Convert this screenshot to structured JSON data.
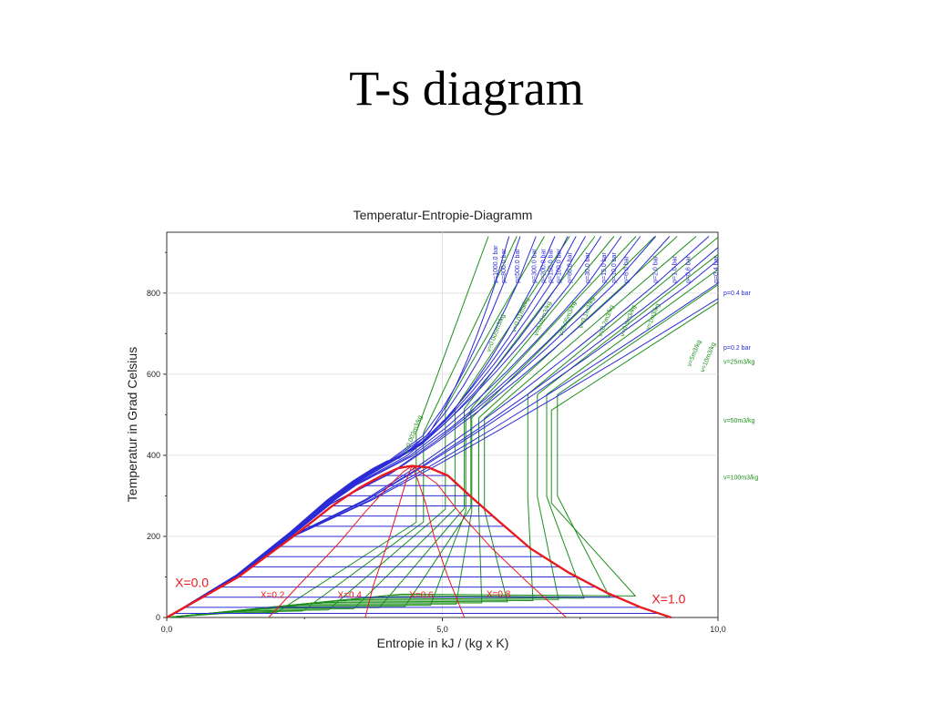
{
  "slide": {
    "title": "T-s diagram"
  },
  "chart_data": {
    "type": "line",
    "title": "Temperatur-Entropie-Diagramm",
    "xlabel": "Entropie in kJ / (kg x K)",
    "ylabel": "Temperatur in Grad Celsius",
    "xlim": [
      0,
      10
    ],
    "ylim": [
      0,
      950
    ],
    "x_ticks": [
      0,
      5,
      10
    ],
    "x_tick_labels": [
      "0,0",
      "5,0",
      "10,0"
    ],
    "y_ticks": [
      0,
      200,
      400,
      600,
      800
    ],
    "y_tick_labels": [
      "0",
      "200",
      "400",
      "600",
      "800"
    ],
    "grid": true,
    "colors": {
      "saturation": "#e8191f",
      "quality": "#e8191f",
      "isobar": "#2b2bd6",
      "isochore": "#1c8f1c",
      "grid": "#dddddd"
    },
    "saturation_dome": {
      "name": "saturation curve",
      "x": [
        0,
        1.3,
        2.3,
        3.0,
        3.5,
        3.9,
        4.2,
        4.45,
        4.75,
        5.1,
        5.5,
        6.0,
        6.6,
        7.3,
        8.0,
        8.6,
        9.15
      ],
      "y": [
        0,
        100,
        200,
        275,
        320,
        350,
        368,
        374,
        370,
        350,
        300,
        240,
        170,
        110,
        60,
        25,
        0
      ]
    },
    "quality_lines": [
      {
        "label": "X=0.0",
        "x": [
          0,
          1.3,
          2.3,
          3.0,
          3.5,
          3.9,
          4.2,
          4.45
        ],
        "y": [
          0,
          100,
          200,
          275,
          320,
          350,
          368,
          374
        ]
      },
      {
        "label": "X=0.2",
        "x": [
          1.85,
          2.4,
          3.1,
          3.6,
          4.0,
          4.3,
          4.45
        ],
        "y": [
          0,
          80,
          180,
          260,
          320,
          360,
          374
        ]
      },
      {
        "label": "X=0.4",
        "x": [
          3.6,
          3.75,
          4.0,
          4.2,
          4.35,
          4.45
        ],
        "y": [
          0,
          80,
          180,
          270,
          340,
          374
        ]
      },
      {
        "label": "X=0.6",
        "x": [
          5.4,
          5.1,
          4.85,
          4.7,
          4.55,
          4.45
        ],
        "y": [
          0,
          100,
          200,
          280,
          340,
          374
        ]
      },
      {
        "label": "X=0.8",
        "x": [
          7.25,
          6.6,
          5.9,
          5.3,
          4.9,
          4.45
        ],
        "y": [
          0,
          80,
          170,
          260,
          330,
          374
        ]
      },
      {
        "label": "X=1.0",
        "x": [
          9.15,
          8.6,
          8.0,
          7.3,
          6.6,
          6.0,
          5.5,
          5.1,
          4.75,
          4.45
        ],
        "y": [
          0,
          25,
          60,
          110,
          170,
          240,
          300,
          350,
          370,
          374
        ]
      }
    ],
    "quality_label_positions": [
      {
        "label": "X=0.0",
        "x": 0.15,
        "y": 75
      },
      {
        "label": "X=0.2",
        "x": 1.7,
        "y": 48
      },
      {
        "label": "X=0.4",
        "x": 3.1,
        "y": 48
      },
      {
        "label": "X=0.6",
        "x": 4.4,
        "y": 48
      },
      {
        "label": "X=0.8",
        "x": 5.8,
        "y": 50
      },
      {
        "label": "X=1.0",
        "x": 8.8,
        "y": 35
      }
    ],
    "isobars": [
      {
        "label": "p=1000.0 bar",
        "top_x": 5.95
      },
      {
        "label": "p=800.0 bar",
        "top_x": 6.1
      },
      {
        "label": "p=500.0 bar",
        "top_x": 6.35
      },
      {
        "label": "p=300.0 bar",
        "top_x": 6.65
      },
      {
        "label": "p=200.0 bar",
        "top_x": 6.82
      },
      {
        "label": "p=150.0 bar",
        "top_x": 6.95
      },
      {
        "label": "p=100.0 bar",
        "top_x": 7.1
      },
      {
        "label": "p=60.0 bar",
        "top_x": 7.3
      },
      {
        "label": "p=30.0 bar",
        "top_x": 7.62
      },
      {
        "label": "p=15.0 bar",
        "top_x": 7.92
      },
      {
        "label": "p=10.0 bar",
        "top_x": 8.1
      },
      {
        "label": "p=6.0 bar",
        "top_x": 8.32
      },
      {
        "label": "p=2.0 bar",
        "top_x": 8.85
      },
      {
        "label": "p=1.0 bar",
        "top_x": 9.2
      },
      {
        "label": "p=0.6 bar",
        "top_x": 9.45
      },
      {
        "label": "p=0.4 bar",
        "top_x": 9.95
      },
      {
        "label": "p=0.2 bar",
        "top_x": 10.4
      }
    ],
    "isobar_side_labels": [
      {
        "label": "p=0.4 bar",
        "y": 800
      },
      {
        "label": "p=0.2 bar",
        "y": 665
      }
    ],
    "isochores": [
      {
        "label": "v=0.003m3/kg",
        "top_x": 5.6
      },
      {
        "label": "v=0.005m3/kg",
        "top_x": 6.05
      },
      {
        "label": "v=0.01m3/kg",
        "top_x": 6.45
      },
      {
        "label": "v=0.02m3/kg",
        "top_x": 6.85
      },
      {
        "label": "v=0.05m3/kg",
        "top_x": 7.25
      },
      {
        "label": "v=0.1m3/kg",
        "top_x": 7.55
      },
      {
        "label": "v=0.2m3/kg",
        "top_x": 7.85
      },
      {
        "label": "v=0.5m3/kg",
        "top_x": 8.15
      },
      {
        "label": "v=1m3/kg",
        "top_x": 8.5
      },
      {
        "label": "v=2m3/kg",
        "top_x": 8.8
      },
      {
        "label": "v=5m3/kg",
        "top_x": 9.1
      },
      {
        "label": "v=10m3/kg",
        "top_x": 9.45
      },
      {
        "label": "v=25m3/kg",
        "top_x": 9.8
      },
      {
        "label": "v=50m3/kg",
        "top_x": 10.2
      },
      {
        "label": "v=100m3/kg",
        "top_x": 10.6
      }
    ],
    "isochore_side_labels": [
      {
        "label": "v=25m3/kg",
        "y": 630
      },
      {
        "label": "v=50m3/kg",
        "y": 485
      },
      {
        "label": "v=100m3/kg",
        "y": 345
      }
    ],
    "isochore_inline_labels": [
      {
        "label": "v=0.003m3/kg",
        "x": 4.5,
        "y": 450
      },
      {
        "label": "v=0.005m3/kg",
        "x": 6.0,
        "y": 700
      },
      {
        "label": "v=0.01m3/kg",
        "x": 6.45,
        "y": 745
      },
      {
        "label": "v=0.02m3/kg",
        "x": 6.85,
        "y": 735
      },
      {
        "label": "v=0.05m3/kg",
        "x": 7.3,
        "y": 735
      },
      {
        "label": "v=0.1m3/kg",
        "x": 7.65,
        "y": 750
      },
      {
        "label": "v=0.2m3/kg",
        "x": 8.0,
        "y": 730
      },
      {
        "label": "v=0.5m3/kg",
        "x": 8.4,
        "y": 730
      },
      {
        "label": "v=1m3/kg",
        "x": 8.85,
        "y": 740
      },
      {
        "label": "v=5m3/kg",
        "x": 9.6,
        "y": 650
      },
      {
        "label": "v=10m3/kg",
        "x": 9.85,
        "y": 640
      }
    ],
    "isotherm_temperatures": [
      10,
      25,
      50,
      75,
      100,
      125,
      150,
      175,
      200,
      225,
      250,
      275,
      300,
      325,
      350
    ]
  }
}
